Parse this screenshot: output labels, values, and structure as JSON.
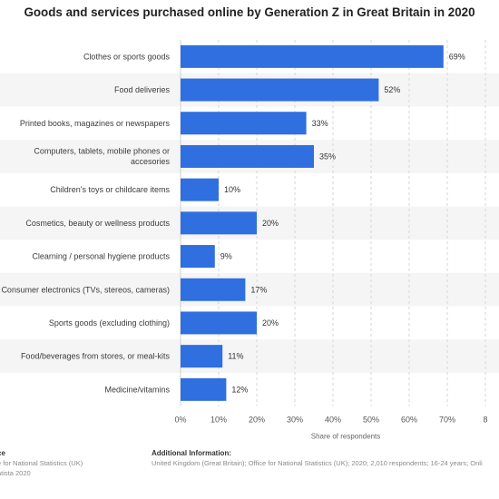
{
  "title": "Goods and services purchased online by Generation Z in Great Britain in 2020",
  "chart_data": {
    "type": "bar",
    "orientation": "horizontal",
    "categories": [
      [
        "Clothes or sports goods"
      ],
      [
        "Food deliveries"
      ],
      [
        "Printed books, magazines or newspapers"
      ],
      [
        "Computers, tablets, mobile phones or",
        "accesories"
      ],
      [
        "Children's toys or childcare items"
      ],
      [
        "Cosmetics, beauty or wellness products"
      ],
      [
        "Clearning / personal hygiene products"
      ],
      [
        "Consumer electronics (TVs, stereos, cameras)"
      ],
      [
        "Sports goods (excluding clothing)"
      ],
      [
        "Food/beverages from stores, or meal-kits"
      ],
      [
        "Medicine/vitamins"
      ]
    ],
    "values": [
      69,
      52,
      33,
      35,
      10,
      20,
      9,
      17,
      20,
      11,
      12
    ],
    "value_labels": [
      "69%",
      "52%",
      "33%",
      "35%",
      "10%",
      "20%",
      "9%",
      "17%",
      "20%",
      "11%",
      "12%"
    ],
    "xticks": [
      "0%",
      "10%",
      "20%",
      "30%",
      "40%",
      "50%",
      "60%",
      "70%",
      "8"
    ],
    "xlim": [
      0,
      80
    ],
    "xlabel": "Share of respondents",
    "grid": true,
    "bar_color": "#2f6fdf"
  },
  "footer": {
    "source_head": "ce",
    "source_lines": [
      "e for National Statistics (UK)",
      "atista 2020"
    ],
    "info_head": "Additional Information:",
    "info_line": "United Kingdom (Great Britain); Office for National Statistics (UK); 2020; 2,010 respondents; 16-24 years; Onli"
  }
}
